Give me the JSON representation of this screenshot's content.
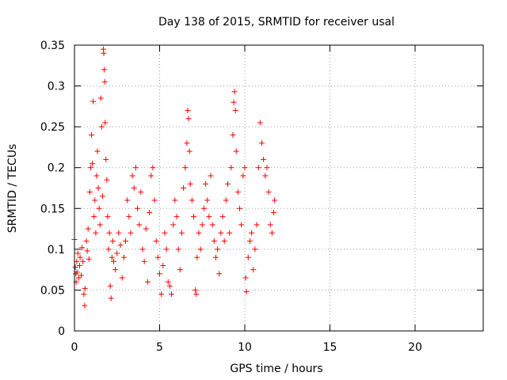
{
  "chart_data": {
    "type": "scatter",
    "title": "Day 138 of 2015, SRMTID for receiver usal",
    "xlabel": "GPS time / hours",
    "ylabel": "SRMTID / TECUs",
    "xlim": [
      0,
      24
    ],
    "ylim": [
      0,
      0.35
    ],
    "x_ticks": [
      0,
      5,
      10,
      15,
      20
    ],
    "x_tick_labels": [
      "0",
      "5",
      "10",
      "15",
      "20"
    ],
    "y_ticks": [
      0,
      0.05,
      0.1,
      0.15,
      0.2,
      0.25,
      0.3,
      0.35
    ],
    "y_tick_labels": [
      "0",
      "0.05",
      "0.1",
      "0.15",
      "0.2",
      "0.25",
      "0.3",
      "0.35"
    ],
    "grid": true,
    "marker": "+",
    "color": "#ff0000",
    "points": [
      [
        0.0,
        0.112
      ],
      [
        0.05,
        0.078
      ],
      [
        0.08,
        0.07
      ],
      [
        0.1,
        0.06
      ],
      [
        0.13,
        0.085
      ],
      [
        0.15,
        0.072
      ],
      [
        0.2,
        0.095
      ],
      [
        0.25,
        0.065
      ],
      [
        0.3,
        0.08
      ],
      [
        0.33,
        0.09
      ],
      [
        0.4,
        0.068
      ],
      [
        0.45,
        0.102
      ],
      [
        0.5,
        0.085
      ],
      [
        0.55,
        0.045
      ],
      [
        0.6,
        0.031
      ],
      [
        0.62,
        0.052
      ],
      [
        0.7,
        0.11
      ],
      [
        0.75,
        0.098
      ],
      [
        0.8,
        0.125
      ],
      [
        0.85,
        0.088
      ],
      [
        0.9,
        0.17
      ],
      [
        0.95,
        0.2
      ],
      [
        1.0,
        0.24
      ],
      [
        1.05,
        0.205
      ],
      [
        1.1,
        0.281
      ],
      [
        1.15,
        0.14
      ],
      [
        1.2,
        0.16
      ],
      [
        1.25,
        0.12
      ],
      [
        1.3,
        0.19
      ],
      [
        1.35,
        0.22
      ],
      [
        1.4,
        0.175
      ],
      [
        1.45,
        0.15
      ],
      [
        1.5,
        0.13
      ],
      [
        1.55,
        0.285
      ],
      [
        1.6,
        0.25
      ],
      [
        1.65,
        0.165
      ],
      [
        1.7,
        0.345
      ],
      [
        1.72,
        0.34
      ],
      [
        1.75,
        0.32
      ],
      [
        1.78,
        0.305
      ],
      [
        1.8,
        0.255
      ],
      [
        1.85,
        0.21
      ],
      [
        1.9,
        0.185
      ],
      [
        1.95,
        0.14
      ],
      [
        2.0,
        0.1
      ],
      [
        2.05,
        0.12
      ],
      [
        2.1,
        0.055
      ],
      [
        2.15,
        0.04
      ],
      [
        2.2,
        0.09
      ],
      [
        2.25,
        0.11
      ],
      [
        2.3,
        0.085
      ],
      [
        2.4,
        0.075
      ],
      [
        2.5,
        0.095
      ],
      [
        2.6,
        0.12
      ],
      [
        2.7,
        0.105
      ],
      [
        2.8,
        0.065
      ],
      [
        2.9,
        0.09
      ],
      [
        3.0,
        0.11
      ],
      [
        3.1,
        0.16
      ],
      [
        3.2,
        0.14
      ],
      [
        3.3,
        0.12
      ],
      [
        3.4,
        0.19
      ],
      [
        3.5,
        0.175
      ],
      [
        3.6,
        0.2
      ],
      [
        3.7,
        0.15
      ],
      [
        3.8,
        0.13
      ],
      [
        3.9,
        0.17
      ],
      [
        4.0,
        0.1
      ],
      [
        4.1,
        0.085
      ],
      [
        4.2,
        0.125
      ],
      [
        4.3,
        0.06
      ],
      [
        4.4,
        0.145
      ],
      [
        4.5,
        0.19
      ],
      [
        4.6,
        0.2
      ],
      [
        4.7,
        0.16
      ],
      [
        4.8,
        0.11
      ],
      [
        4.9,
        0.09
      ],
      [
        5.0,
        0.07
      ],
      [
        5.1,
        0.045
      ],
      [
        5.2,
        0.08
      ],
      [
        5.3,
        0.12
      ],
      [
        5.4,
        0.1
      ],
      [
        5.5,
        0.06
      ],
      [
        5.6,
        0.055
      ],
      [
        5.7,
        0.045
      ],
      [
        5.8,
        0.13
      ],
      [
        5.9,
        0.16
      ],
      [
        6.0,
        0.14
      ],
      [
        6.1,
        0.1
      ],
      [
        6.2,
        0.075
      ],
      [
        6.3,
        0.12
      ],
      [
        6.4,
        0.175
      ],
      [
        6.5,
        0.2
      ],
      [
        6.6,
        0.23
      ],
      [
        6.65,
        0.27
      ],
      [
        6.7,
        0.26
      ],
      [
        6.75,
        0.22
      ],
      [
        6.8,
        0.18
      ],
      [
        6.9,
        0.16
      ],
      [
        7.0,
        0.14
      ],
      [
        7.1,
        0.05
      ],
      [
        7.15,
        0.045
      ],
      [
        7.2,
        0.09
      ],
      [
        7.3,
        0.12
      ],
      [
        7.4,
        0.1
      ],
      [
        7.5,
        0.13
      ],
      [
        7.6,
        0.15
      ],
      [
        7.7,
        0.18
      ],
      [
        7.8,
        0.16
      ],
      [
        7.9,
        0.14
      ],
      [
        8.0,
        0.19
      ],
      [
        8.1,
        0.13
      ],
      [
        8.2,
        0.11
      ],
      [
        8.3,
        0.09
      ],
      [
        8.4,
        0.1
      ],
      [
        8.5,
        0.07
      ],
      [
        8.6,
        0.12
      ],
      [
        8.7,
        0.14
      ],
      [
        8.8,
        0.11
      ],
      [
        8.9,
        0.16
      ],
      [
        9.0,
        0.18
      ],
      [
        9.1,
        0.12
      ],
      [
        9.2,
        0.2
      ],
      [
        9.3,
        0.24
      ],
      [
        9.35,
        0.28
      ],
      [
        9.4,
        0.293
      ],
      [
        9.45,
        0.27
      ],
      [
        9.5,
        0.22
      ],
      [
        9.6,
        0.17
      ],
      [
        9.7,
        0.15
      ],
      [
        9.8,
        0.13
      ],
      [
        9.9,
        0.19
      ],
      [
        10.0,
        0.2
      ],
      [
        10.05,
        0.065
      ],
      [
        10.1,
        0.048
      ],
      [
        10.2,
        0.09
      ],
      [
        10.3,
        0.11
      ],
      [
        10.4,
        0.12
      ],
      [
        10.5,
        0.075
      ],
      [
        10.6,
        0.1
      ],
      [
        10.7,
        0.13
      ],
      [
        10.8,
        0.2
      ],
      [
        10.9,
        0.255
      ],
      [
        11.0,
        0.23
      ],
      [
        11.1,
        0.21
      ],
      [
        11.2,
        0.19
      ],
      [
        11.3,
        0.2
      ],
      [
        11.4,
        0.17
      ],
      [
        11.5,
        0.13
      ],
      [
        11.6,
        0.12
      ],
      [
        11.7,
        0.145
      ],
      [
        11.75,
        0.16
      ]
    ]
  }
}
